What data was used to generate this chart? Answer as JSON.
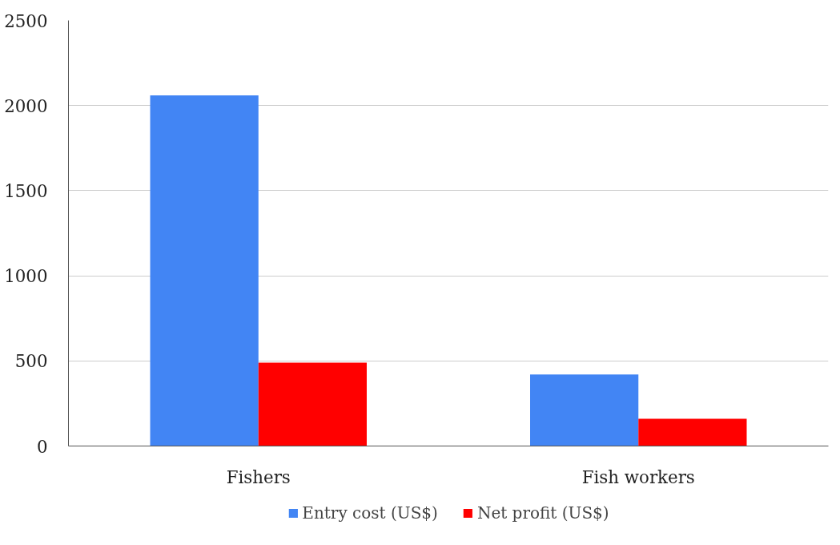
{
  "chart_data": {
    "type": "bar",
    "categories": [
      "Fishers",
      "Fish workers"
    ],
    "series": [
      {
        "name": "Entry cost (US$)",
        "color": "#4285f4",
        "values": [
          2060,
          420
        ]
      },
      {
        "name": "Net profit (US$)",
        "color": "#ff0000",
        "values": [
          490,
          160
        ]
      }
    ],
    "ylim": [
      0,
      2500
    ],
    "yticks": [
      0,
      500,
      1000,
      1500,
      2000,
      2500
    ],
    "grid": "y",
    "legend": "bottom"
  }
}
